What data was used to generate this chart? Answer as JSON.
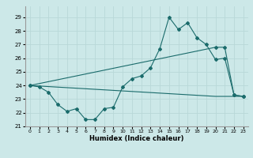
{
  "xlabel": "Humidex (Indice chaleur)",
  "bg_color": "#cce8e8",
  "line_color": "#1a6b6b",
  "grid_color": "#b8d8d8",
  "xlim": [
    -0.5,
    23.5
  ],
  "ylim": [
    21.0,
    29.8
  ],
  "yticks": [
    21,
    22,
    23,
    24,
    25,
    26,
    27,
    28,
    29
  ],
  "xticks": [
    0,
    1,
    2,
    3,
    4,
    5,
    6,
    7,
    8,
    9,
    10,
    11,
    12,
    13,
    14,
    15,
    16,
    17,
    18,
    19,
    20,
    21,
    22,
    23
  ],
  "line1_x": [
    0,
    1,
    2,
    3,
    4,
    5,
    6,
    7,
    8,
    9,
    10,
    11,
    12,
    13,
    14,
    15,
    16,
    17,
    18,
    19,
    20,
    21,
    22,
    23
  ],
  "line1_y": [
    24.0,
    23.9,
    23.5,
    22.6,
    22.1,
    22.3,
    21.5,
    21.5,
    22.3,
    22.4,
    23.9,
    24.5,
    24.7,
    25.3,
    26.7,
    29.0,
    28.1,
    28.6,
    27.5,
    27.0,
    25.9,
    26.0,
    23.3,
    23.2
  ],
  "line2_x": [
    0,
    20,
    21,
    22,
    23
  ],
  "line2_y": [
    24.0,
    26.8,
    26.8,
    23.3,
    23.2
  ],
  "line3_x": [
    0,
    20,
    21,
    22,
    23
  ],
  "line3_y": [
    24.0,
    23.2,
    23.2,
    23.2,
    23.2
  ]
}
